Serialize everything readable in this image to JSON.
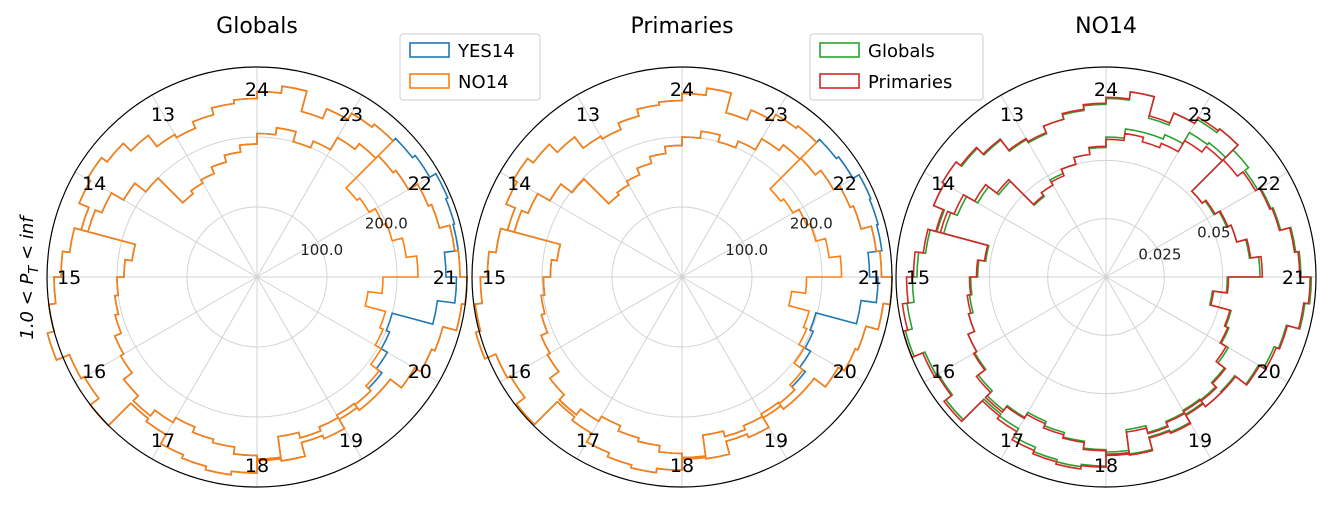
{
  "figure": {
    "ylabel": "1.0 < P_T < inf",
    "ylabel_parts": [
      "1.0 < ",
      "P",
      "T",
      " < ",
      "inf"
    ]
  },
  "chart_data": [
    {
      "type": "polar-step",
      "title": "Globals",
      "angular_tick_labels": [
        "21",
        "22",
        "23",
        "24",
        "13",
        "14",
        "15",
        "16",
        "17",
        "18",
        "19",
        "20"
      ],
      "radial_tick_labels": [
        "100.0",
        "200.0"
      ],
      "radial_ticks": [
        100,
        200
      ],
      "rmax": 300,
      "grid": true,
      "legend": {
        "placement": "upper-right",
        "entries": [
          "YES14",
          "NO14"
        ]
      },
      "bins_per_sector": 4,
      "series": [
        {
          "name": "YES14",
          "color": "#1f77b4",
          "values": [
            295,
            300,
            290,
            285,
            270,
            265,
            250,
            245,
            240,
            230,
            210,
            200,
            215,
            205,
            190,
            180,
            170,
            160,
            155,
            150,
            200,
            220,
            240,
            250,
            270,
            280,
            290,
            300,
            310,
            290,
            285,
            300,
            255,
            260,
            275,
            280,
            285,
            280,
            260,
            265,
            245,
            250,
            235,
            230,
            225,
            215,
            205,
            200,
            260,
            285,
            270,
            290,
            292,
            295,
            285,
            280,
            275,
            270,
            260,
            245,
            275,
            265,
            255,
            250,
            240,
            230,
            235,
            255,
            270,
            280,
            275,
            260,
            180,
            190,
            200,
            205,
            210,
            220,
            225,
            240,
            250,
            240,
            232,
            240,
            245,
            255,
            262,
            230,
            238,
            232,
            228,
            240,
            240,
            260,
            270,
            275
          ]
        },
        {
          "name": "NO14",
          "color": "#ff7f0e",
          "values": [
            295,
            300,
            290,
            285,
            270,
            265,
            250,
            245,
            240,
            230,
            210,
            200,
            215,
            205,
            190,
            180,
            170,
            160,
            155,
            150,
            200,
            220,
            240,
            250,
            270,
            280,
            290,
            300,
            310,
            290,
            285,
            300,
            255,
            260,
            275,
            280,
            285,
            280,
            260,
            265,
            245,
            250,
            235,
            230,
            220,
            205,
            195,
            190,
            160,
            180,
            230,
            215,
            200,
            195,
            185,
            180,
            275,
            270,
            260,
            245,
            275,
            265,
            255,
            250,
            240,
            230,
            235,
            255,
            270,
            280,
            275,
            260,
            180,
            190,
            200,
            205,
            210,
            220,
            225,
            240,
            250,
            240,
            232,
            240,
            245,
            255,
            262,
            230,
            238,
            232,
            228,
            240,
            240,
            260,
            270,
            275
          ]
        }
      ]
    },
    {
      "type": "polar-step",
      "title": "Primaries",
      "angular_tick_labels": [
        "21",
        "22",
        "23",
        "24",
        "13",
        "14",
        "15",
        "16",
        "17",
        "18",
        "19",
        "20"
      ],
      "radial_tick_labels": [
        "100.0",
        "200.0"
      ],
      "radial_ticks": [
        100,
        200
      ],
      "rmax": 300,
      "grid": true,
      "legend": null,
      "bins_per_sector": 4,
      "series": [
        {
          "name": "YES14",
          "color": "#1f77b4",
          "values": [
            290,
            300,
            285,
            280,
            265,
            260,
            250,
            240,
            238,
            228,
            210,
            200,
            210,
            200,
            188,
            178,
            168,
            158,
            152,
            148,
            198,
            218,
            238,
            248,
            268,
            278,
            288,
            298,
            305,
            288,
            283,
            298,
            252,
            258,
            272,
            278,
            282,
            276,
            258,
            262,
            243,
            248,
            232,
            228,
            222,
            212,
            203,
            198,
            258,
            280,
            268,
            288,
            290,
            292,
            282,
            278,
            272,
            268,
            258,
            243,
            272,
            262,
            252,
            248,
            238,
            228,
            232,
            252,
            268,
            278,
            272,
            258,
            180,
            188,
            198,
            203,
            208,
            218,
            222,
            238,
            248,
            238,
            230,
            238,
            243,
            252,
            260,
            228,
            236,
            230,
            226,
            238,
            238,
            258,
            268,
            272
          ]
        },
        {
          "name": "NO14",
          "color": "#ff7f0e",
          "values": [
            290,
            300,
            285,
            280,
            265,
            260,
            250,
            240,
            238,
            228,
            210,
            200,
            210,
            200,
            188,
            178,
            168,
            158,
            152,
            148,
            198,
            218,
            238,
            248,
            268,
            278,
            288,
            298,
            305,
            288,
            283,
            298,
            252,
            258,
            272,
            278,
            282,
            276,
            258,
            262,
            243,
            248,
            232,
            228,
            218,
            202,
            193,
            188,
            158,
            178,
            228,
            212,
            198,
            193,
            183,
            178,
            272,
            268,
            258,
            243,
            272,
            262,
            252,
            248,
            238,
            228,
            232,
            252,
            268,
            278,
            272,
            258,
            180,
            188,
            198,
            203,
            208,
            218,
            222,
            238,
            248,
            238,
            230,
            238,
            243,
            252,
            260,
            228,
            236,
            230,
            226,
            238,
            238,
            258,
            268,
            272
          ]
        }
      ]
    },
    {
      "type": "polar-step",
      "title": "NO14",
      "angular_tick_labels": [
        "21",
        "22",
        "23",
        "24",
        "13",
        "14",
        "15",
        "16",
        "17",
        "18",
        "19",
        "20"
      ],
      "radial_tick_labels": [
        "0.025",
        "0.05"
      ],
      "radial_ticks": [
        0.025,
        0.05
      ],
      "rmax": 0.09,
      "grid": true,
      "legend": {
        "placement": "upper-left",
        "entries": [
          "Globals",
          "Primaries"
        ]
      },
      "bins_per_sector": 4,
      "series": [
        {
          "name": "Globals",
          "color": "#2ca02c",
          "values": [
            0.086,
            0.088,
            0.0835,
            0.082,
            0.0775,
            0.0765,
            0.075,
            0.077,
            0.0725,
            0.0715,
            0.066,
            0.064,
            0.064,
            0.06,
            0.0555,
            0.053,
            0.05,
            0.048,
            0.0455,
            0.0435,
            0.058,
            0.0635,
            0.069,
            0.072,
            0.078,
            0.081,
            0.083,
            0.086,
            0.089,
            0.084,
            0.083,
            0.0865,
            0.074,
            0.075,
            0.079,
            0.081,
            0.082,
            0.081,
            0.075,
            0.0765,
            0.071,
            0.072,
            0.068,
            0.0665,
            0.064,
            0.0605,
            0.057,
            0.0555,
            0.046,
            0.052,
            0.066,
            0.062,
            0.058,
            0.056,
            0.0535,
            0.052,
            0.08,
            0.078,
            0.076,
            0.0705,
            0.08,
            0.0765,
            0.074,
            0.072,
            0.07,
            0.0665,
            0.068,
            0.074,
            0.078,
            0.081,
            0.08,
            0.075,
            0.052,
            0.055,
            0.058,
            0.059,
            0.061,
            0.064,
            0.065,
            0.069,
            0.072,
            0.0695,
            0.067,
            0.069,
            0.071,
            0.074,
            0.076,
            0.066,
            0.069,
            0.067,
            0.066,
            0.07,
            0.0695,
            0.0755,
            0.078,
            0.08
          ]
        },
        {
          "name": "Primaries",
          "color": "#d62728",
          "values": [
            0.0855,
            0.0875,
            0.083,
            0.0815,
            0.077,
            0.076,
            0.074,
            0.071,
            0.0705,
            0.0675,
            0.062,
            0.06,
            0.062,
            0.059,
            0.056,
            0.053,
            0.05,
            0.047,
            0.0455,
            0.044,
            0.059,
            0.065,
            0.0705,
            0.0735,
            0.079,
            0.0825,
            0.0855,
            0.088,
            0.09,
            0.085,
            0.0835,
            0.0875,
            0.075,
            0.0765,
            0.0805,
            0.082,
            0.083,
            0.0815,
            0.076,
            0.077,
            0.0715,
            0.0725,
            0.0685,
            0.067,
            0.0645,
            0.0595,
            0.0565,
            0.055,
            0.0465,
            0.0525,
            0.067,
            0.0625,
            0.058,
            0.0565,
            0.054,
            0.052,
            0.08,
            0.079,
            0.076,
            0.0715,
            0.08,
            0.077,
            0.0745,
            0.0725,
            0.07,
            0.067,
            0.0685,
            0.0745,
            0.0785,
            0.081,
            0.08,
            0.0755,
            0.0525,
            0.0555,
            0.0585,
            0.06,
            0.061,
            0.064,
            0.0655,
            0.07,
            0.073,
            0.07,
            0.068,
            0.07,
            0.0715,
            0.0745,
            0.0765,
            0.067,
            0.0695,
            0.0675,
            0.0665,
            0.07,
            0.07,
            0.076,
            0.079,
            0.0805
          ]
        }
      ]
    }
  ]
}
